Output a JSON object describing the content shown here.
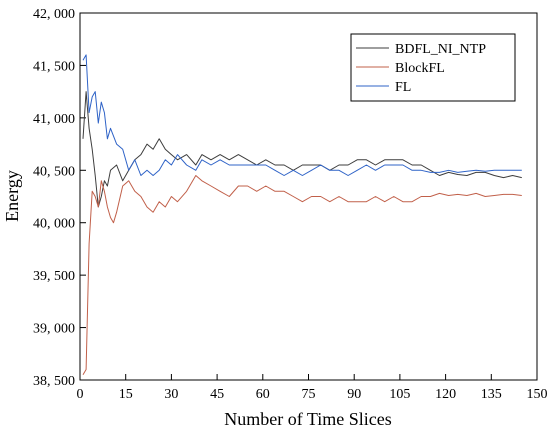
{
  "chart_data": {
    "type": "line",
    "xlabel": "Number of Time Slices",
    "ylabel": "Energy",
    "xlim": [
      0,
      150
    ],
    "ylim": [
      38500,
      42000
    ],
    "xticks": [
      0,
      15,
      30,
      45,
      60,
      75,
      90,
      105,
      120,
      135,
      150
    ],
    "xtick_labels": [
      "0",
      "15",
      "30",
      "45",
      "60",
      "75",
      "90",
      "105",
      "120",
      "135",
      "150"
    ],
    "yticks": [
      38500,
      39000,
      39500,
      40000,
      40500,
      41000,
      41500,
      42000
    ],
    "ytick_labels": [
      "38, 500",
      "39, 000",
      "39, 500",
      "40, 000",
      "40, 500",
      "41, 000",
      "41, 500",
      "42, 000"
    ],
    "grid": false,
    "legend_position": "top-right",
    "series": [
      {
        "name": "BDFL_NI_NTP",
        "color": "#3d3d3d",
        "x": [
          1,
          2,
          3,
          4,
          5,
          6,
          7,
          8,
          9,
          10,
          12,
          14,
          16,
          18,
          20,
          22,
          24,
          26,
          28,
          30,
          32,
          35,
          38,
          40,
          43,
          46,
          49,
          52,
          55,
          58,
          61,
          64,
          67,
          70,
          73,
          76,
          79,
          82,
          85,
          88,
          91,
          94,
          97,
          100,
          103,
          106,
          109,
          112,
          115,
          118,
          121,
          124,
          127,
          130,
          133,
          136,
          139,
          142,
          145
        ],
        "values": [
          40800,
          41250,
          40900,
          40700,
          40450,
          40150,
          40250,
          40400,
          40350,
          40500,
          40550,
          40400,
          40500,
          40600,
          40650,
          40750,
          40700,
          40800,
          40700,
          40650,
          40600,
          40650,
          40550,
          40650,
          40600,
          40650,
          40600,
          40650,
          40600,
          40550,
          40600,
          40550,
          40550,
          40500,
          40550,
          40550,
          40550,
          40500,
          40550,
          40550,
          40600,
          40600,
          40550,
          40600,
          40600,
          40600,
          40550,
          40550,
          40500,
          40450,
          40480,
          40460,
          40450,
          40480,
          40480,
          40450,
          40430,
          40450,
          40430
        ]
      },
      {
        "name": "BlockFL",
        "color": "#c1604a",
        "x": [
          1,
          2,
          3,
          4,
          5,
          6,
          7,
          8,
          9,
          10,
          11,
          12,
          14,
          16,
          18,
          20,
          22,
          24,
          26,
          28,
          30,
          32,
          35,
          38,
          40,
          43,
          46,
          49,
          52,
          55,
          58,
          61,
          64,
          67,
          70,
          73,
          76,
          79,
          82,
          85,
          88,
          91,
          94,
          97,
          100,
          103,
          106,
          109,
          112,
          115,
          118,
          121,
          124,
          127,
          130,
          133,
          136,
          139,
          142,
          145
        ],
        "values": [
          38550,
          38600,
          39800,
          40300,
          40250,
          40150,
          40400,
          40300,
          40150,
          40050,
          40000,
          40100,
          40350,
          40400,
          40300,
          40250,
          40150,
          40100,
          40200,
          40150,
          40250,
          40200,
          40300,
          40450,
          40400,
          40350,
          40300,
          40250,
          40350,
          40350,
          40300,
          40350,
          40300,
          40300,
          40250,
          40200,
          40250,
          40250,
          40200,
          40250,
          40200,
          40200,
          40200,
          40250,
          40200,
          40250,
          40200,
          40200,
          40250,
          40250,
          40280,
          40260,
          40270,
          40260,
          40280,
          40250,
          40260,
          40270,
          40270,
          40260
        ]
      },
      {
        "name": "FL",
        "color": "#2f63c7",
        "x": [
          1,
          2,
          3,
          4,
          5,
          6,
          7,
          8,
          9,
          10,
          12,
          14,
          16,
          18,
          20,
          22,
          24,
          26,
          28,
          30,
          32,
          35,
          38,
          40,
          43,
          46,
          49,
          52,
          55,
          58,
          61,
          64,
          67,
          70,
          73,
          76,
          79,
          82,
          85,
          88,
          91,
          94,
          97,
          100,
          103,
          106,
          109,
          112,
          115,
          118,
          121,
          124,
          127,
          130,
          133,
          136,
          139,
          142,
          145
        ],
        "values": [
          41550,
          41600,
          41050,
          41200,
          41250,
          40950,
          41150,
          41050,
          40800,
          40900,
          40750,
          40700,
          40500,
          40600,
          40450,
          40500,
          40450,
          40500,
          40600,
          40550,
          40650,
          40550,
          40500,
          40600,
          40550,
          40600,
          40550,
          40550,
          40550,
          40550,
          40550,
          40500,
          40450,
          40500,
          40450,
          40500,
          40550,
          40500,
          40500,
          40450,
          40500,
          40550,
          40500,
          40550,
          40550,
          40550,
          40500,
          40500,
          40480,
          40480,
          40500,
          40480,
          40490,
          40500,
          40490,
          40500,
          40500,
          40500,
          40500
        ]
      }
    ]
  }
}
